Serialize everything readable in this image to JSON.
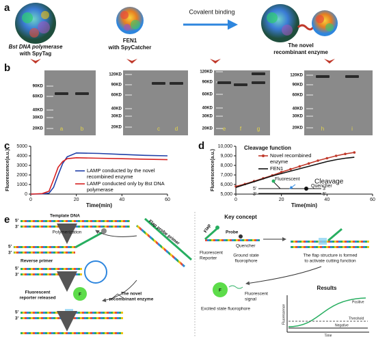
{
  "panel_labels": [
    "a",
    "b",
    "c",
    "d",
    "e"
  ],
  "panel_a": {
    "enzyme1": [
      "Bst DNA polymerase",
      "with SpyTag"
    ],
    "enzyme2": [
      "FEN1",
      "with SpyCatcher"
    ],
    "arrow_label": "Covalent binding",
    "product": [
      "The novel",
      "recombinant enzyme"
    ]
  },
  "panel_b": {
    "gels": [
      {
        "markers": [
          "90KD",
          "60KD",
          "40KD",
          "30KD",
          "20KD"
        ],
        "lanes": [
          "a",
          "b"
        ]
      },
      {
        "markers": [
          "120KD",
          "90KD",
          "60KD",
          "40KD",
          "30KD",
          "20KD"
        ],
        "lanes": [
          "c",
          "d"
        ]
      },
      {
        "markers": [
          "120KD",
          "90KD",
          "60KD",
          "40KD",
          "30KD",
          "20KD"
        ],
        "lanes": [
          "e",
          "f",
          "g"
        ]
      },
      {
        "markers": [
          "120KD",
          "90KD",
          "60KD",
          "40KD",
          "30KD",
          "20KD"
        ],
        "lanes": [
          "h",
          "i"
        ]
      }
    ]
  },
  "chart_data": [
    {
      "type": "line",
      "x_label": "Time(min)",
      "y_label": "Fluorescence(a.u.)",
      "x": [
        0,
        5,
        8,
        10,
        12,
        14,
        16,
        20,
        30,
        40,
        50,
        60
      ],
      "series": [
        {
          "name": "LAMP conducted by the novel recombined enzyme",
          "color": "#1f3fa8",
          "values": [
            0,
            20,
            100,
            700,
            2000,
            3200,
            3900,
            4300,
            4250,
            4150,
            4050,
            4000
          ]
        },
        {
          "name": "LAMP conducted only by Bst DNA polymerase",
          "color": "#d62020",
          "values": [
            0,
            50,
            300,
            1500,
            2800,
            3400,
            3700,
            3800,
            3750,
            3700,
            3650,
            3600
          ]
        }
      ],
      "xlim": [
        0,
        60
      ],
      "ylim": [
        0,
        5000
      ],
      "xticks": [
        0,
        20,
        40,
        60
      ],
      "yticks": [
        0,
        1000,
        2000,
        3000,
        4000,
        5000
      ],
      "legend": "lower right"
    },
    {
      "type": "line",
      "title": "Cleavage function",
      "x_label": "Time(min)",
      "y_label": "Fluorescence(a.u.)",
      "x": [
        0,
        4,
        8,
        12,
        16,
        20,
        24,
        28,
        32,
        36,
        40,
        44,
        48,
        52
      ],
      "series": [
        {
          "name": "Novel recombined enzyme",
          "color": "#c0392b",
          "marker": "circle",
          "values": [
            5800,
            6050,
            6350,
            6650,
            6950,
            7300,
            7600,
            7900,
            8200,
            8500,
            8750,
            9000,
            9200,
            9350
          ]
        },
        {
          "name": "FEN1",
          "color": "#111111",
          "values": [
            5700,
            6000,
            6300,
            6600,
            6900,
            7150,
            7400,
            7650,
            7900,
            8150,
            8400,
            8600,
            8750,
            8850
          ]
        }
      ],
      "xlim": [
        0,
        60
      ],
      "ylim": [
        5000,
        10000
      ],
      "xticks": [
        0,
        20,
        40,
        60
      ],
      "yticks": [
        {
          "value": 5000,
          "label": "5,000"
        },
        {
          "value": 6000,
          "label": "6,000"
        },
        {
          "value": 7000,
          "label": "7,000"
        },
        {
          "value": 8000,
          "label": "8,000"
        },
        {
          "value": 9000,
          "label": "9,000"
        },
        {
          "value": 10000,
          "label": "10,000"
        }
      ],
      "legend": "upper left",
      "annotations": [
        "Fluorescent",
        "Cleavage",
        "Quencher",
        "5'",
        "3'",
        "3'",
        "5'"
      ]
    }
  ],
  "panel_e": {
    "template_dna": "Template DNA",
    "polymerization": "Polymerization",
    "flap_probe_primer": "Flap probe primer",
    "reverse_primer": "Reverse primer",
    "reporter_released": [
      "Fluorescent",
      "reporter released"
    ],
    "enzyme": [
      "The novel",
      "recombinant enzyme"
    ],
    "reporter_symbol": "F",
    "strand_ends": [
      "5'",
      "3'",
      "5'",
      "3'",
      "5'",
      "3'",
      "5'",
      "3'"
    ],
    "key_concept": "Key concept",
    "flap": "Flap",
    "probe": "Probe",
    "quencher": "Quencher",
    "fluorescent_reporter": [
      "Fluorescent",
      "Reporter"
    ],
    "ground_state": [
      "Ground state",
      "fluorophore"
    ],
    "flap_structure": [
      "The flap structure is formed",
      "to activate cutting function"
    ],
    "fluorescent_signal": [
      "Fluorescent",
      "signal"
    ],
    "excited_state": "Excited state fluorophore",
    "excited_symbol": "F",
    "results": {
      "title": "Results",
      "positive": "Positive",
      "threshold": "Threshold",
      "negative": "Negative",
      "x_label": "Time",
      "y_label": "Fluorescence"
    }
  }
}
